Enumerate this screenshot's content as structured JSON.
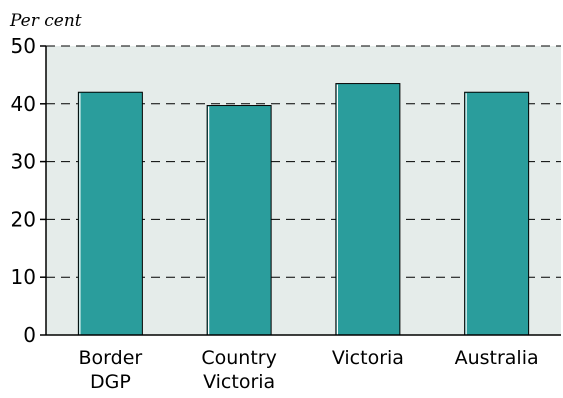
{
  "chart_data": {
    "type": "bar",
    "ylabel": "Per cent",
    "ylim": [
      0,
      50
    ],
    "yticks": [
      0,
      10,
      20,
      30,
      40,
      50
    ],
    "grid": "horizontal dashed",
    "categories": [
      [
        "Border",
        "DGP"
      ],
      [
        "Country",
        "Victoria"
      ],
      [
        "Victoria"
      ],
      [
        "Australia"
      ]
    ],
    "values": [
      42,
      39.7,
      43.5,
      42
    ],
    "bar_color": "#2a9d9c",
    "plot_background": "#e5ecea"
  }
}
